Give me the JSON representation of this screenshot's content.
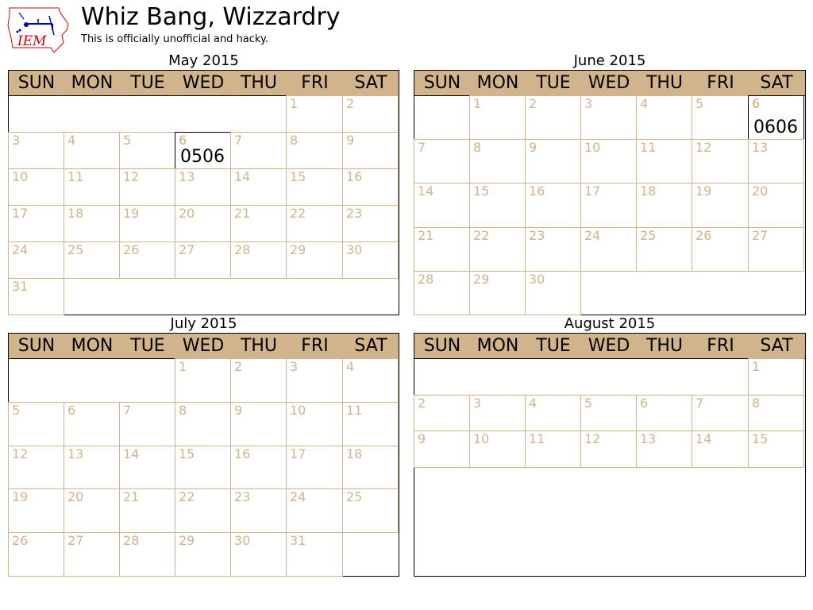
{
  "header": {
    "title": "Whiz Bang, Wizzardry",
    "subtitle": "This is officially unofficial and hacky.",
    "logo_text": "IEM"
  },
  "colors": {
    "tan": "#d2b48c",
    "highlight_border": "#000000",
    "logo_red": "#cc0000",
    "logo_blue": "#0000aa"
  },
  "chart_data": {
    "type": "table",
    "weekdays": [
      "SUN",
      "MON",
      "TUE",
      "WED",
      "THU",
      "FRI",
      "SAT"
    ],
    "months": [
      {
        "title": "May 2015",
        "year": 2015,
        "month": 5,
        "days": 31,
        "start_weekday": 5,
        "highlights": [
          {
            "day": 6,
            "label": "0506"
          }
        ]
      },
      {
        "title": "June 2015",
        "year": 2015,
        "month": 6,
        "days": 30,
        "start_weekday": 1,
        "highlights": [
          {
            "day": 6,
            "label": "0606"
          }
        ]
      },
      {
        "title": "July 2015",
        "year": 2015,
        "month": 7,
        "days": 31,
        "start_weekday": 3,
        "highlights": []
      },
      {
        "title": "August 2015",
        "year": 2015,
        "month": 8,
        "days": 15,
        "start_weekday": 6,
        "highlights": []
      }
    ]
  }
}
